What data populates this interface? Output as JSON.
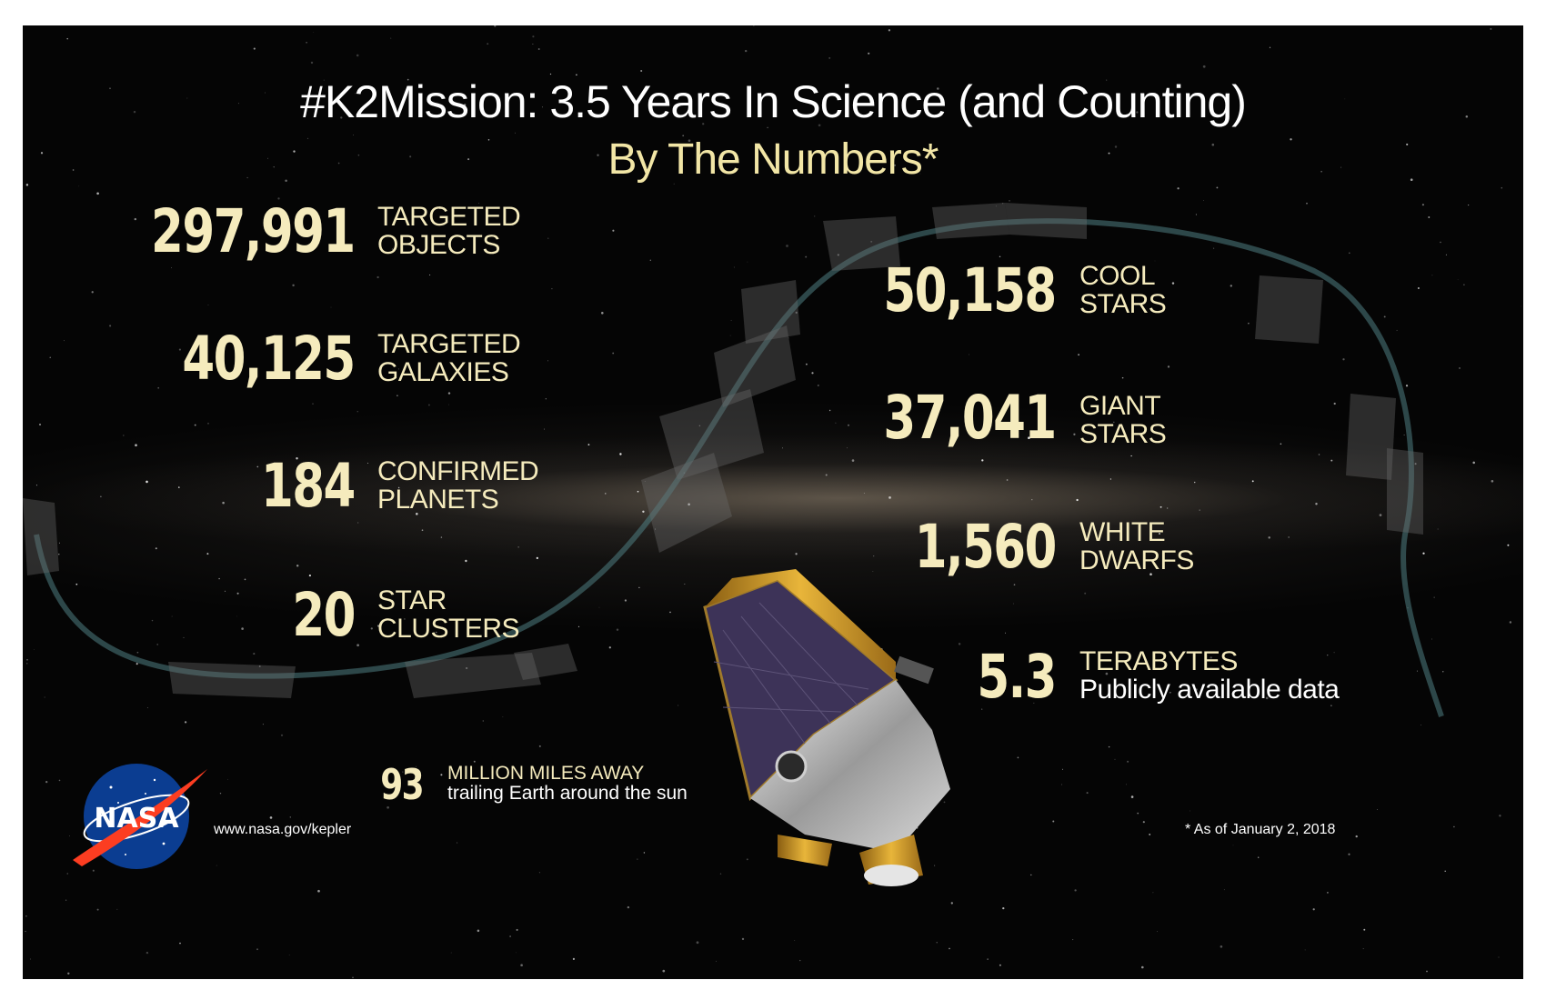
{
  "title": "#K2Mission: 3.5 Years In Science (and Counting)",
  "subtitle": "By The Numbers*",
  "left_stats": [
    {
      "value": "297,991",
      "label_line1": "TARGETED",
      "label_line2": "OBJECTS"
    },
    {
      "value": "40,125",
      "label_line1": "TARGETED",
      "label_line2": "GALAXIES"
    },
    {
      "value": "184",
      "label_line1": "CONFIRMED",
      "label_line2": "PLANETS"
    },
    {
      "value": "20",
      "label_line1": "STAR",
      "label_line2": "CLUSTERS"
    }
  ],
  "right_stats": [
    {
      "value": "50,158",
      "label_line1": "COOL",
      "label_line2": "STARS"
    },
    {
      "value": "37,041",
      "label_line1": "GIANT",
      "label_line2": "STARS"
    },
    {
      "value": "1,560",
      "label_line1": "WHITE",
      "label_line2": "DWARFS"
    },
    {
      "value": "5.3",
      "label_line1": "TERABYTES",
      "label_line2": "Publicly available data"
    }
  ],
  "distance": {
    "value": "93",
    "label_line1": "MILLION MILES AWAY",
    "label_line2": "trailing Earth around the sun"
  },
  "url": "www.nasa.gov/kepler",
  "footnote": "* As of January 2, 2018",
  "logo_text": "NASA",
  "colors": {
    "accent": "#f5ebbd",
    "subtitle": "#f2e6a6",
    "background": "#050505",
    "logo_blue": "#0b3d91",
    "logo_red": "#fc3d21"
  },
  "icons": {
    "logo": "nasa-meatball-icon",
    "spacecraft": "kepler-spacecraft-icon"
  }
}
